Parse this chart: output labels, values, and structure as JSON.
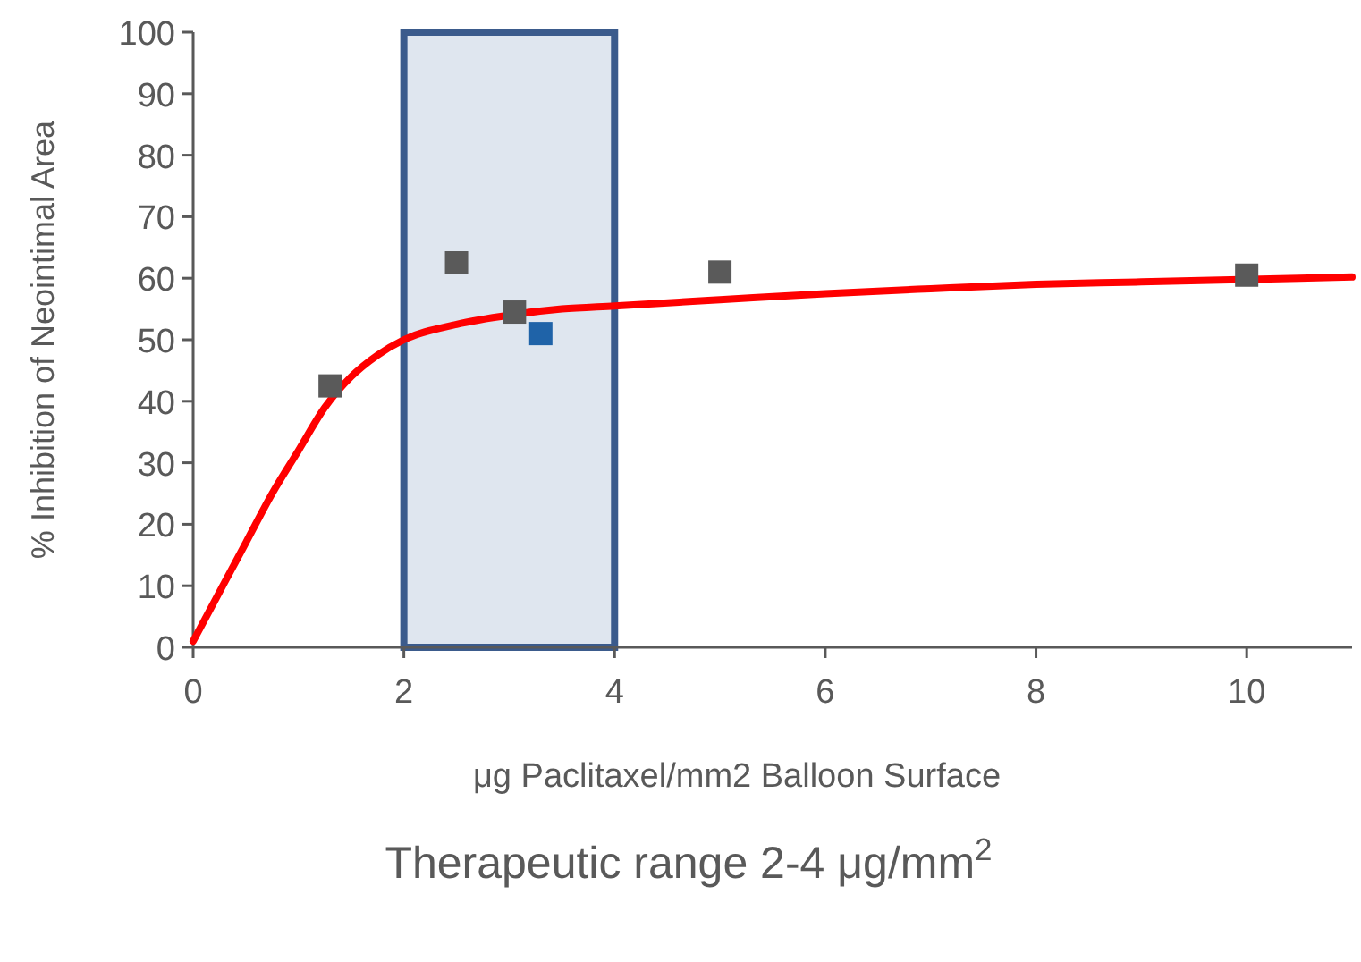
{
  "chart_data": {
    "type": "scatter",
    "xlabel": "μg Paclitaxel/mm2 Balloon Surface",
    "ylabel": "% Inhibition of Neointimal Area",
    "xlim": [
      0,
      11
    ],
    "xticks": [
      0,
      2,
      4,
      6,
      8,
      10
    ],
    "ylim": [
      0,
      100
    ],
    "yticks": [
      0,
      10,
      20,
      30,
      40,
      50,
      60,
      70,
      80,
      90,
      100
    ],
    "grid": false,
    "series": [
      {
        "type": "line",
        "color": "#ff0000",
        "x": [
          0,
          0.25,
          0.5,
          0.75,
          1,
          1.25,
          1.5,
          1.75,
          2,
          2.5,
          3,
          3.5,
          4,
          5,
          6,
          7,
          8,
          9,
          10.5,
          11
        ],
        "values": [
          1,
          9,
          17,
          25,
          32,
          39,
          44,
          47.5,
          50,
          52.5,
          54,
          55,
          55.5,
          56.5,
          57.5,
          58.3,
          59,
          59.4,
          60,
          60.2
        ],
        "line_style": "solid",
        "marker": "none"
      },
      {
        "x": [
          1.3,
          2.5,
          3.05,
          3.3,
          5,
          10
        ],
        "values": [
          42.5,
          62.5,
          54.5,
          51,
          61,
          60.5
        ],
        "colors": [
          "#5a5a5a",
          "#5a5a5a",
          "#5a5a5a",
          "#1f63a8",
          "#5a5a5a",
          "#5a5a5a"
        ],
        "marker": "square"
      }
    ],
    "bands": [
      {
        "axis": "x",
        "from": 2,
        "to": 4,
        "color": "#dfe6ef"
      }
    ],
    "annotations": [
      "Therapeutic range 2-4 μg/mm$^{2}$"
    ]
  }
}
